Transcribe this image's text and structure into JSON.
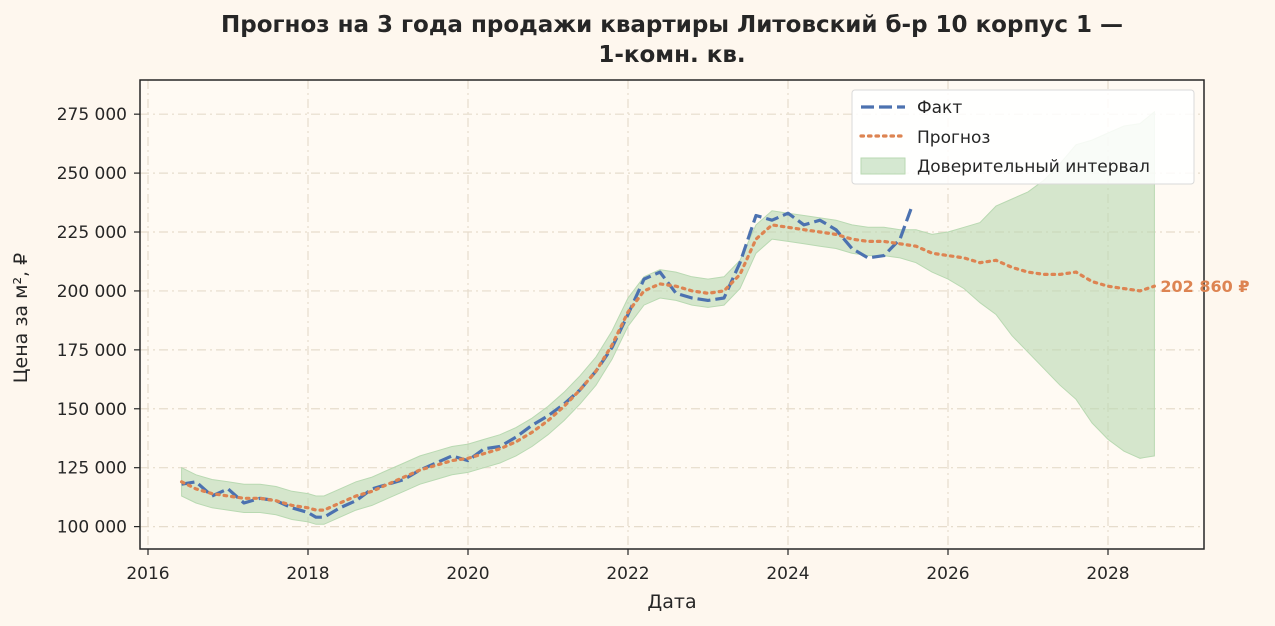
{
  "colors": {
    "background": "#fef7ee",
    "plot_background": "#fffaf3",
    "fact": "#4c72b0",
    "forecast": "#dd8452",
    "interval": "#b9d9b2",
    "grid": "#e6dccc",
    "axis": "#262626"
  },
  "chart_data": {
    "type": "line",
    "title_line1": "Прогноз на 3 года продажи квартиры  Литовский б-р 10 корпус 1 —",
    "title_line2": "1-комн. кв.",
    "xlabel": "Дата",
    "ylabel": "Цена за м², ₽",
    "xlim": [
      2015.9,
      2029.2
    ],
    "ylim": [
      90500,
      289500
    ],
    "x_ticks": [
      2016,
      2018,
      2020,
      2022,
      2024,
      2026,
      2028
    ],
    "x_tick_labels": [
      "2016",
      "2018",
      "2020",
      "2022",
      "2024",
      "2026",
      "2028"
    ],
    "y_ticks": [
      100000,
      125000,
      150000,
      175000,
      200000,
      225000,
      250000,
      275000
    ],
    "y_tick_labels": [
      "100 000",
      "125 000",
      "150 000",
      "175 000",
      "200 000",
      "225 000",
      "250 000",
      "275 000"
    ],
    "grid": true,
    "legend_position": "top-right",
    "legend": {
      "fact": "Факт",
      "forecast": "Прогноз",
      "interval": "Доверительный интервал"
    },
    "end_label": "202 860 ₽",
    "series": [
      {
        "name": "Факт",
        "style": "dashed",
        "x": [
          2016.42,
          2016.6,
          2016.8,
          2017.0,
          2017.2,
          2017.4,
          2017.6,
          2017.8,
          2018.0,
          2018.1,
          2018.2,
          2018.4,
          2018.6,
          2018.8,
          2019.0,
          2019.2,
          2019.4,
          2019.6,
          2019.8,
          2020.0,
          2020.2,
          2020.4,
          2020.6,
          2020.8,
          2021.0,
          2021.2,
          2021.4,
          2021.6,
          2021.8,
          2022.0,
          2022.2,
          2022.4,
          2022.6,
          2022.8,
          2023.0,
          2023.2,
          2023.4,
          2023.6,
          2023.8,
          2024.0,
          2024.2,
          2024.4,
          2024.6,
          2024.8,
          2025.0,
          2025.2,
          2025.4,
          2025.55
        ],
        "y": [
          118000,
          119000,
          113000,
          116000,
          110000,
          112000,
          111000,
          108000,
          106000,
          104000,
          104000,
          108000,
          111000,
          116000,
          118000,
          120000,
          124000,
          127000,
          130000,
          128000,
          133000,
          134000,
          138000,
          143000,
          147000,
          152000,
          158000,
          166000,
          176000,
          190000,
          205000,
          208000,
          199000,
          197000,
          196000,
          197000,
          212000,
          232000,
          230000,
          233000,
          228000,
          230000,
          226000,
          218000,
          214000,
          215000,
          222000,
          236000
        ]
      },
      {
        "name": "Прогноз",
        "style": "dotted",
        "x": [
          2016.42,
          2016.6,
          2016.8,
          2017.0,
          2017.2,
          2017.4,
          2017.6,
          2017.8,
          2018.0,
          2018.1,
          2018.2,
          2018.4,
          2018.6,
          2018.8,
          2019.0,
          2019.2,
          2019.4,
          2019.6,
          2019.8,
          2020.0,
          2020.2,
          2020.4,
          2020.6,
          2020.8,
          2021.0,
          2021.2,
          2021.4,
          2021.6,
          2021.8,
          2022.0,
          2022.2,
          2022.4,
          2022.6,
          2022.8,
          2023.0,
          2023.2,
          2023.4,
          2023.6,
          2023.8,
          2024.0,
          2024.2,
          2024.4,
          2024.6,
          2024.8,
          2025.0,
          2025.2,
          2025.4,
          2025.6,
          2025.8,
          2026.0,
          2026.2,
          2026.4,
          2026.6,
          2026.8,
          2027.0,
          2027.2,
          2027.4,
          2027.6,
          2027.8,
          2028.0,
          2028.2,
          2028.4,
          2028.58
        ],
        "y": [
          119000,
          116000,
          114000,
          113000,
          112000,
          112000,
          111000,
          109000,
          108000,
          107000,
          107000,
          110000,
          113000,
          115000,
          118000,
          121000,
          124000,
          126000,
          128000,
          129000,
          131000,
          133000,
          136000,
          140000,
          145000,
          151000,
          158000,
          166000,
          177000,
          191000,
          200000,
          203000,
          202000,
          200000,
          199000,
          200000,
          207000,
          222000,
          228000,
          227000,
          226000,
          225000,
          224000,
          222000,
          221000,
          221000,
          220000,
          219000,
          216000,
          215000,
          214000,
          212000,
          213000,
          210000,
          208000,
          207000,
          207000,
          208000,
          204000,
          202000,
          201000,
          200000,
          202000
        ]
      }
    ],
    "interval": {
      "name": "Доверительный интервал",
      "x": [
        2016.42,
        2016.6,
        2016.8,
        2017.0,
        2017.2,
        2017.4,
        2017.6,
        2017.8,
        2018.0,
        2018.1,
        2018.2,
        2018.4,
        2018.6,
        2018.8,
        2019.0,
        2019.2,
        2019.4,
        2019.6,
        2019.8,
        2020.0,
        2020.2,
        2020.4,
        2020.6,
        2020.8,
        2021.0,
        2021.2,
        2021.4,
        2021.6,
        2021.8,
        2022.0,
        2022.2,
        2022.4,
        2022.6,
        2022.8,
        2023.0,
        2023.2,
        2023.4,
        2023.6,
        2023.8,
        2024.0,
        2024.2,
        2024.4,
        2024.6,
        2024.8,
        2025.0,
        2025.2,
        2025.4,
        2025.6,
        2025.8,
        2026.0,
        2026.2,
        2026.4,
        2026.6,
        2026.8,
        2027.0,
        2027.2,
        2027.4,
        2027.6,
        2027.8,
        2028.0,
        2028.2,
        2028.4,
        2028.58
      ],
      "lower": [
        113000,
        110000,
        108000,
        107000,
        106000,
        106000,
        105000,
        103000,
        102000,
        101000,
        101000,
        104000,
        107000,
        109000,
        112000,
        115000,
        118000,
        120000,
        122000,
        123000,
        125000,
        127000,
        130000,
        134000,
        139000,
        145000,
        152000,
        160000,
        171000,
        185000,
        194000,
        197000,
        196000,
        194000,
        193000,
        194000,
        201000,
        216000,
        222000,
        221000,
        220000,
        219000,
        218000,
        216000,
        215000,
        215000,
        214000,
        212000,
        208000,
        205000,
        201000,
        195000,
        190000,
        181000,
        174000,
        167000,
        160000,
        154000,
        144000,
        137000,
        132000,
        129000,
        130000
      ],
      "upper": [
        125000,
        122000,
        120000,
        119000,
        118000,
        118000,
        117000,
        115000,
        114000,
        113000,
        113000,
        116000,
        119000,
        121000,
        124000,
        127000,
        130000,
        132000,
        134000,
        135000,
        137000,
        139000,
        142000,
        146000,
        151000,
        157000,
        164000,
        172000,
        183000,
        197000,
        206000,
        209000,
        208000,
        206000,
        205000,
        206000,
        213000,
        228000,
        234000,
        233000,
        232000,
        231000,
        230000,
        228000,
        227000,
        227000,
        226000,
        226000,
        224000,
        225000,
        227000,
        229000,
        236000,
        239000,
        242000,
        247000,
        254000,
        262000,
        264000,
        267000,
        270000,
        271000,
        276000
      ]
    }
  }
}
